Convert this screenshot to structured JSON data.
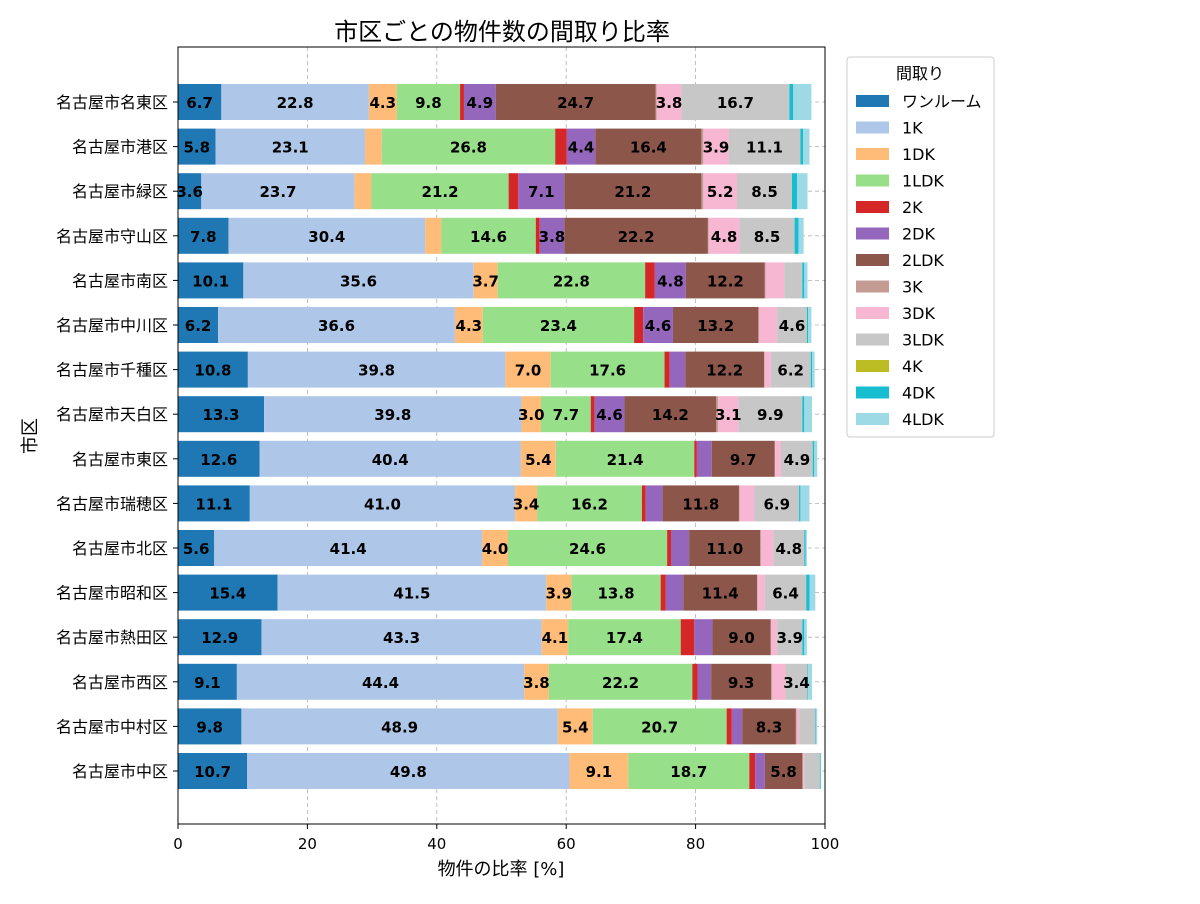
{
  "chart_data": {
    "type": "bar",
    "orientation": "horizontal",
    "stacked": true,
    "title": "市区ごとの物件数の間取り比率",
    "xlabel": "物件の比率 [%]",
    "ylabel": "市区",
    "xlim": [
      0,
      100
    ],
    "xticks": [
      "0",
      "20",
      "40",
      "60",
      "80",
      "100"
    ],
    "grid": true,
    "legend_title": "間取り",
    "legend_position": "outside-top-right",
    "label_min": 3.0,
    "categories": [
      "名古屋市名東区",
      "名古屋市港区",
      "名古屋市緑区",
      "名古屋市守山区",
      "名古屋市南区",
      "名古屋市中川区",
      "名古屋市千種区",
      "名古屋市天白区",
      "名古屋市東区",
      "名古屋市瑞穂区",
      "名古屋市北区",
      "名古屋市昭和区",
      "名古屋市熱田区",
      "名古屋市西区",
      "名古屋市中村区",
      "名古屋市中区"
    ],
    "series": [
      {
        "name": "ワンルーム",
        "color": "#1f77b4",
        "values": [
          6.7,
          5.8,
          3.6,
          7.8,
          10.1,
          6.2,
          10.8,
          13.3,
          12.6,
          11.1,
          5.6,
          15.4,
          12.9,
          9.1,
          9.8,
          10.7
        ]
      },
      {
        "name": "1K",
        "color": "#aec7e8",
        "values": [
          22.8,
          23.1,
          23.7,
          30.4,
          35.6,
          36.6,
          39.8,
          39.8,
          40.4,
          41.0,
          41.4,
          41.5,
          43.3,
          44.4,
          48.9,
          49.8
        ]
      },
      {
        "name": "1DK",
        "color": "#ffbb78",
        "values": [
          4.3,
          2.6,
          2.6,
          2.5,
          3.7,
          4.3,
          7.0,
          3.0,
          5.4,
          3.4,
          4.0,
          3.9,
          4.1,
          3.8,
          5.4,
          9.1
        ]
      },
      {
        "name": "1LDK",
        "color": "#98df8a",
        "values": [
          9.8,
          26.8,
          21.2,
          14.6,
          22.8,
          23.4,
          17.6,
          7.7,
          21.4,
          16.2,
          24.6,
          13.8,
          17.4,
          22.2,
          20.7,
          18.7
        ]
      },
      {
        "name": "2K",
        "color": "#d62728",
        "values": [
          0.6,
          1.8,
          1.5,
          0.6,
          1.5,
          1.4,
          0.8,
          0.6,
          0.4,
          0.6,
          0.6,
          0.8,
          2.1,
          0.8,
          0.8,
          0.9
        ]
      },
      {
        "name": "2DK",
        "color": "#9467bd",
        "values": [
          4.9,
          4.4,
          7.1,
          3.8,
          4.8,
          4.6,
          2.4,
          4.6,
          2.3,
          2.6,
          2.8,
          2.7,
          2.8,
          2.1,
          1.6,
          1.5
        ]
      },
      {
        "name": "2LDK",
        "color": "#8c564b",
        "values": [
          24.7,
          16.4,
          21.2,
          22.2,
          12.2,
          13.2,
          12.2,
          14.2,
          9.7,
          11.8,
          11.0,
          11.4,
          9.0,
          9.3,
          8.3,
          5.8
        ]
      },
      {
        "name": "3K",
        "color": "#c49c94",
        "values": [
          0.2,
          0.3,
          0.3,
          0.1,
          0.1,
          0.1,
          0.1,
          0.3,
          0.1,
          0.1,
          0.1,
          0.1,
          0.1,
          0.1,
          0.1,
          0.1
        ]
      },
      {
        "name": "3DK",
        "color": "#f7b6d2",
        "values": [
          3.8,
          3.9,
          5.2,
          4.8,
          2.9,
          2.8,
          0.9,
          3.1,
          0.9,
          2.3,
          1.9,
          1.1,
          0.9,
          2.1,
          0.4,
          0.2
        ]
      },
      {
        "name": "3LDK",
        "color": "#c7c7c7",
        "values": [
          16.7,
          11.1,
          8.5,
          8.5,
          2.8,
          4.6,
          6.2,
          9.9,
          4.9,
          6.9,
          4.8,
          6.4,
          3.9,
          3.4,
          2.5,
          2.4
        ]
      },
      {
        "name": "4K",
        "color": "#bcbd22",
        "values": [
          0.0,
          0.0,
          0.0,
          0.0,
          0.0,
          0.0,
          0.0,
          0.0,
          0.0,
          0.0,
          0.0,
          0.0,
          0.0,
          0.0,
          0.0,
          0.0
        ]
      },
      {
        "name": "4DK",
        "color": "#17becf",
        "values": [
          0.6,
          0.4,
          0.8,
          0.6,
          0.3,
          0.2,
          0.2,
          0.3,
          0.2,
          0.2,
          0.2,
          0.5,
          0.3,
          0.1,
          0.1,
          0.1
        ]
      },
      {
        "name": "4LDK",
        "color": "#9edae5",
        "values": [
          2.8,
          1.0,
          1.6,
          0.8,
          0.5,
          0.5,
          0.4,
          1.2,
          0.5,
          1.4,
          0.2,
          0.9,
          0.4,
          0.6,
          0.2,
          0.1
        ]
      }
    ]
  }
}
